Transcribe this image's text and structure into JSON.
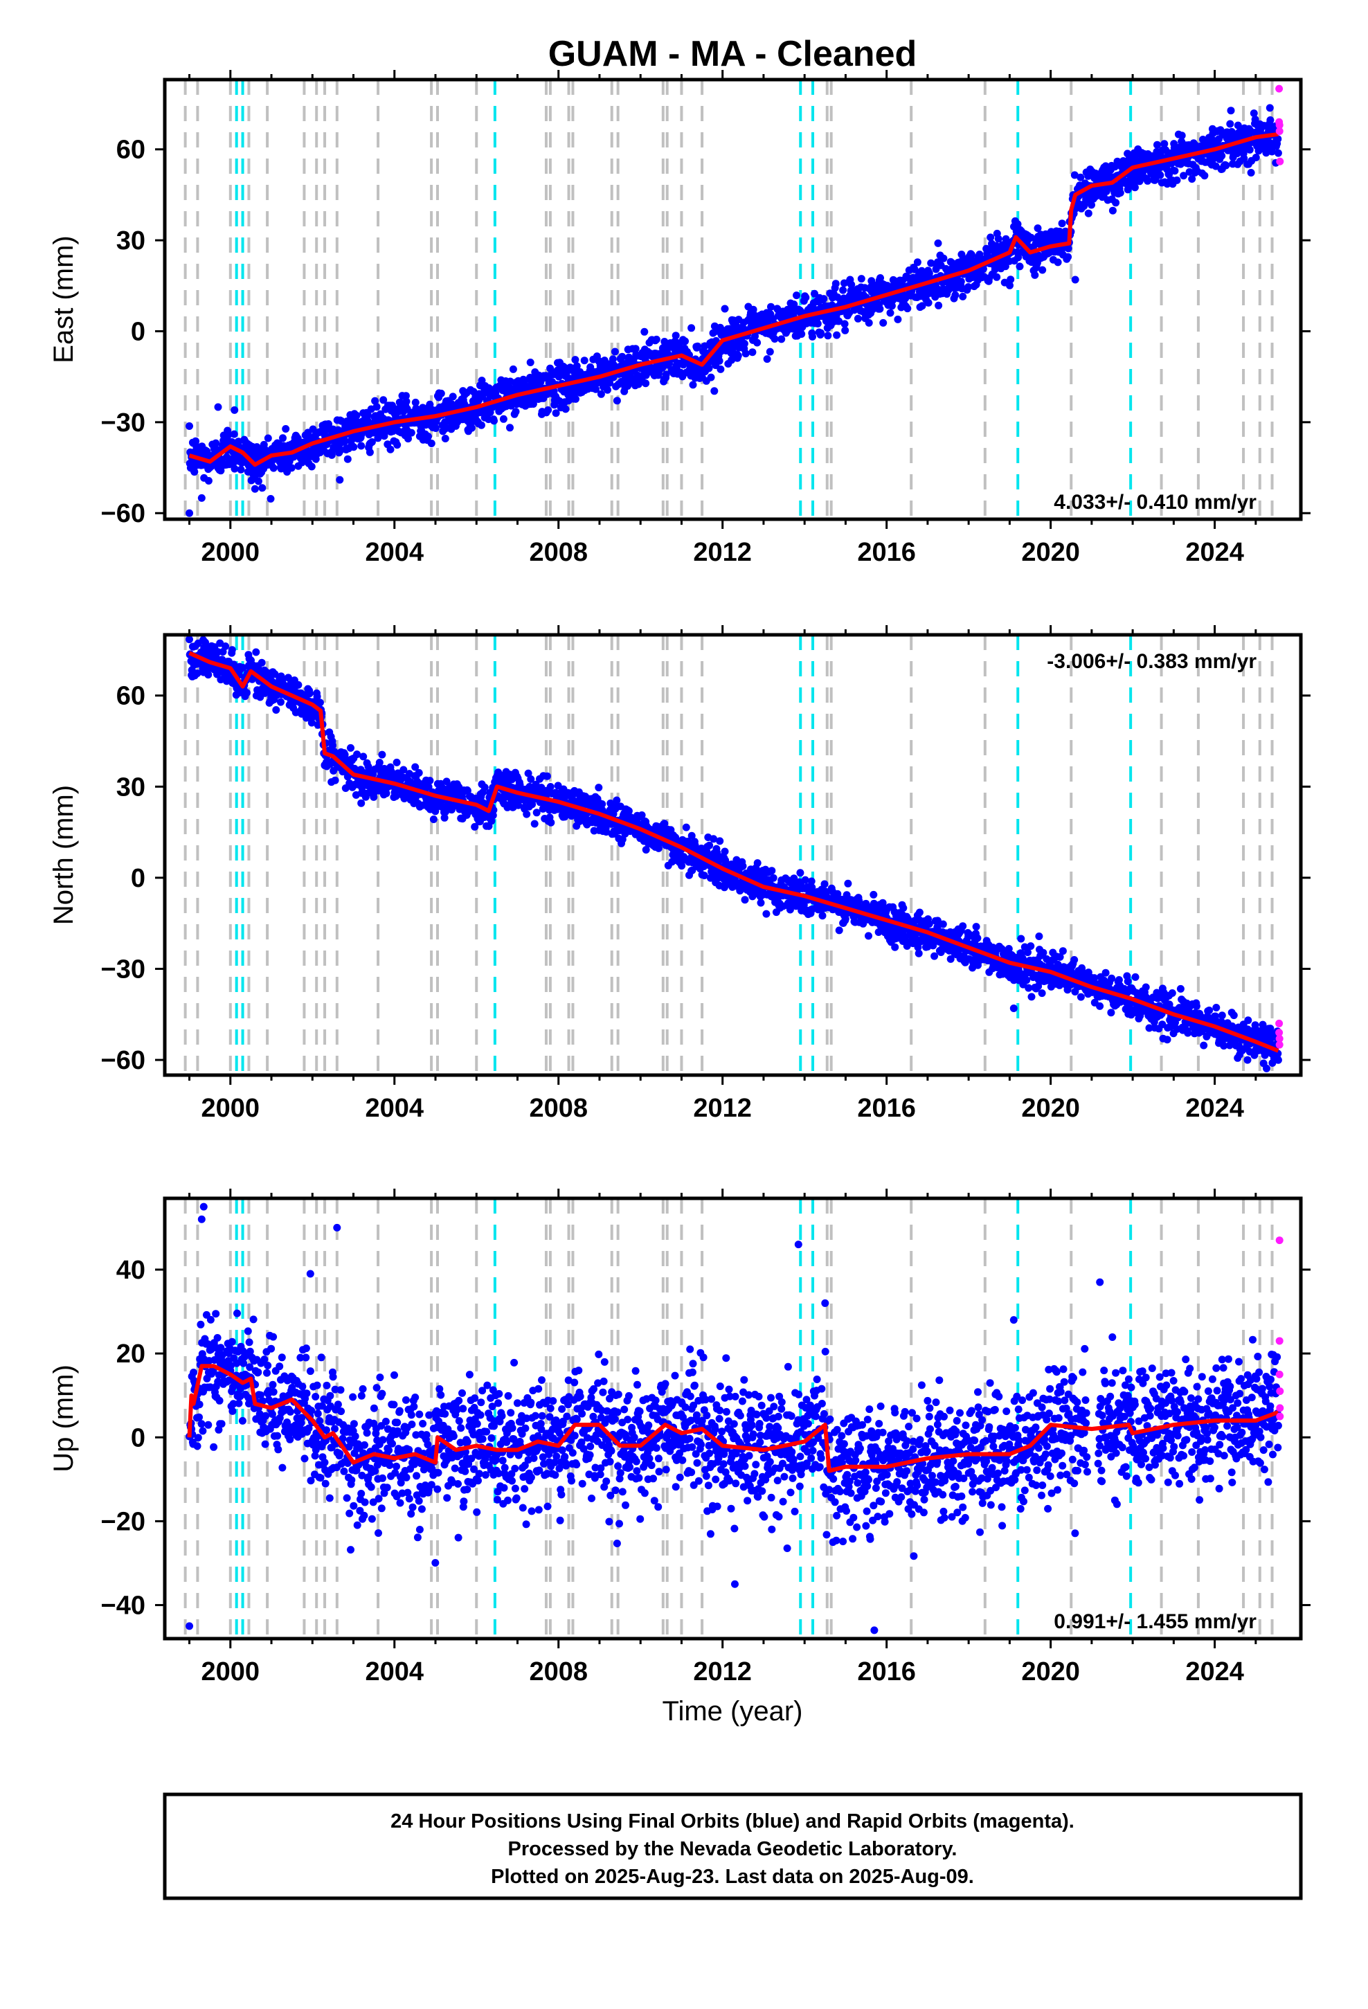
{
  "title": "GUAM  - MA - Cleaned",
  "xlabel": "Time (year)",
  "caption": {
    "line1": "24 Hour Positions Using Final Orbits (blue) and Rapid Orbits (magenta).",
    "line2": "Processed by the Nevada Geodetic Laboratory.",
    "line3": "Plotted on 2025-Aug-23. Last data on 2025-Aug-09."
  },
  "colors": {
    "final_orbits": "#0000ff",
    "rapid_orbits": "#ff1aff",
    "model_fit": "#ff0000",
    "event_gray": "#c0c0c0",
    "event_cyan": "#00e5ee"
  },
  "chart_data": [
    {
      "type": "scatter",
      "ylabel": "East (mm)",
      "rate_label": "4.033+/- 0.410 mm/yr",
      "xlim": [
        1998.4,
        2026.1
      ],
      "ylim": [
        -62,
        83
      ],
      "x_ticks": [
        2000,
        2004,
        2008,
        2012,
        2016,
        2020,
        2024
      ],
      "y_ticks": [
        -60,
        -30,
        0,
        30,
        60
      ],
      "grid": false,
      "fit_series": {
        "name": "model",
        "x": [
          1999.0,
          1999.5,
          2000.0,
          2000.3,
          2000.6,
          2001.0,
          2001.5,
          2002.0,
          2003.0,
          2004.0,
          2005.0,
          2006.0,
          2007.0,
          2008.0,
          2009.0,
          2010.0,
          2011.0,
          2011.5,
          2012.0,
          2013.0,
          2014.0,
          2015.0,
          2016.0,
          2017.0,
          2018.0,
          2019.0,
          2019.15,
          2019.5,
          2020.0,
          2020.45,
          2020.5,
          2020.6,
          2021.0,
          2021.5,
          2022.0,
          2023.0,
          2024.0,
          2025.0,
          2025.55
        ],
        "y": [
          -41,
          -43,
          -38,
          -40,
          -44,
          -41,
          -40,
          -37,
          -33,
          -30,
          -28,
          -25,
          -21,
          -18,
          -15,
          -11,
          -8,
          -11,
          -3,
          1,
          5,
          8,
          12,
          16,
          20,
          26,
          31,
          26,
          28,
          29,
          40,
          45,
          48,
          49,
          54,
          57,
          60,
          64,
          65
        ]
      },
      "rapid_points": {
        "x": [
          2025.57,
          2025.57,
          2025.58,
          2025.58,
          2025.59
        ],
        "y": [
          80,
          69,
          68,
          66,
          56
        ]
      },
      "scatter_spread_mm": 3.5,
      "outliers": {
        "x": [
          1999.0,
          1999.3,
          1999.7,
          2000.1,
          2000.6,
          2020.6
        ],
        "y": [
          -60,
          -55,
          -25,
          -26,
          -52,
          17
        ]
      },
      "events_gray": [
        1998.9,
        1999.2,
        2000.0,
        2000.45,
        2000.9,
        2001.8,
        2002.1,
        2002.3,
        2002.6,
        2003.6,
        2004.9,
        2005.05,
        2006.0,
        2007.7,
        2007.8,
        2008.25,
        2008.35,
        2009.3,
        2009.45,
        2010.55,
        2010.65,
        2011.0,
        2011.5,
        2014.55,
        2014.65,
        2016.6,
        2018.4,
        2020.5,
        2022.7,
        2023.6,
        2024.7,
        2025.1,
        2025.4
      ],
      "events_cyan": [
        2000.15,
        2000.3,
        2006.45,
        2013.9,
        2014.2,
        2019.2,
        2021.95
      ]
    },
    {
      "type": "scatter",
      "ylabel": "North (mm)",
      "rate_label": "-3.006+/- 0.383 mm/yr",
      "xlim": [
        1998.4,
        2026.1
      ],
      "ylim": [
        -65,
        80
      ],
      "x_ticks": [
        2000,
        2004,
        2008,
        2012,
        2016,
        2020,
        2024
      ],
      "y_ticks": [
        -60,
        -30,
        0,
        30,
        60
      ],
      "grid": false,
      "fit_series": {
        "name": "model",
        "x": [
          1999.0,
          1999.5,
          2000.0,
          2000.3,
          2000.5,
          2001.0,
          2001.5,
          2002.0,
          2002.2,
          2002.3,
          2002.5,
          2003.0,
          2004.0,
          2005.0,
          2006.0,
          2006.3,
          2006.5,
          2007.0,
          2008.0,
          2009.0,
          2010.0,
          2011.0,
          2012.0,
          2013.0,
          2014.0,
          2015.0,
          2016.0,
          2017.0,
          2018.0,
          2019.0,
          2020.0,
          2021.0,
          2022.0,
          2023.0,
          2024.0,
          2025.0,
          2025.55
        ],
        "y": [
          74,
          71,
          69,
          63,
          68,
          63,
          60,
          57,
          55,
          41,
          40,
          34,
          31,
          27,
          24,
          22,
          30,
          28,
          25,
          21,
          16,
          10,
          3,
          -3,
          -6,
          -10,
          -14,
          -18,
          -23,
          -28,
          -31,
          -36,
          -40,
          -45,
          -49,
          -54,
          -57
        ]
      },
      "rapid_points": {
        "x": [
          2025.57,
          2025.57,
          2025.58,
          2025.58
        ],
        "y": [
          -48,
          -51,
          -53,
          -55
        ]
      },
      "scatter_spread_mm": 3.0,
      "outliers": {
        "x": [
          2002.3,
          2006.3,
          2011.5,
          2019.1,
          2024.8
        ],
        "y": [
          37,
          17,
          1,
          -43,
          -60
        ]
      },
      "events_gray": [
        1998.9,
        1999.2,
        2000.0,
        2000.45,
        2000.9,
        2001.8,
        2002.1,
        2002.3,
        2002.6,
        2003.6,
        2004.9,
        2005.05,
        2006.0,
        2007.7,
        2007.8,
        2008.25,
        2008.35,
        2009.3,
        2009.45,
        2010.55,
        2010.65,
        2011.0,
        2011.5,
        2014.55,
        2014.65,
        2016.6,
        2018.4,
        2020.5,
        2022.7,
        2023.6,
        2024.7,
        2025.1,
        2025.4
      ],
      "events_cyan": [
        2000.15,
        2000.3,
        2006.45,
        2013.9,
        2014.2,
        2019.2,
        2021.95
      ]
    },
    {
      "type": "scatter",
      "ylabel": "Up (mm)",
      "rate_label": "0.991+/- 1.455 mm/yr",
      "xlim": [
        1998.4,
        2026.1
      ],
      "ylim": [
        -48,
        57
      ],
      "x_ticks": [
        2000,
        2004,
        2008,
        2012,
        2016,
        2020,
        2024
      ],
      "y_ticks": [
        -40,
        -20,
        0,
        20,
        40
      ],
      "grid": false,
      "fit_series": {
        "name": "model",
        "x": [
          1999.0,
          1999.05,
          1999.1,
          1999.3,
          1999.6,
          2000.0,
          2000.3,
          2000.5,
          2000.6,
          2001.0,
          2001.5,
          2002.0,
          2002.3,
          2002.5,
          2003.0,
          2003.5,
          2004.0,
          2004.5,
          2005.0,
          2005.05,
          2005.5,
          2006.0,
          2006.5,
          2007.0,
          2007.5,
          2008.0,
          2008.4,
          2009.0,
          2009.5,
          2010.0,
          2010.6,
          2011.0,
          2011.5,
          2012.0,
          2013.0,
          2014.0,
          2014.5,
          2014.6,
          2015.0,
          2016.0,
          2017.0,
          2018.0,
          2019.0,
          2019.5,
          2020.0,
          2021.0,
          2021.9,
          2022.0,
          2023.0,
          2024.0,
          2025.0,
          2025.55
        ],
        "y": [
          0,
          10,
          8,
          17,
          17,
          15,
          13,
          14,
          8,
          7,
          9,
          4,
          0,
          1,
          -6,
          -4,
          -5,
          -4,
          -6,
          0,
          -3,
          -2,
          -3,
          -3,
          -1,
          -2,
          3,
          3,
          -2,
          -2,
          3,
          1,
          2,
          -2,
          -3,
          -1,
          3,
          -8,
          -7,
          -7,
          -5,
          -4,
          -4,
          -2,
          3,
          2,
          3,
          1,
          3,
          4,
          4,
          6
        ]
      },
      "rapid_points": {
        "x": [
          2025.58,
          2025.58,
          2025.58,
          2025.59,
          2025.59,
          2025.59
        ],
        "y": [
          47,
          23,
          15,
          11,
          7,
          5
        ]
      },
      "scatter_spread_mm": 7.0,
      "outliers": {
        "x": [
          1999.0,
          1999.3,
          1999.35,
          2002.6,
          2001.95,
          2013.85,
          2015.7,
          2014.5,
          2012.3,
          2021.2,
          2019.1
        ],
        "y": [
          -45,
          52,
          55,
          50,
          39,
          46,
          -46,
          32,
          -35,
          37,
          28
        ]
      },
      "events_gray": [
        1998.9,
        1999.2,
        2000.0,
        2000.45,
        2000.9,
        2001.8,
        2002.1,
        2002.3,
        2002.6,
        2003.6,
        2004.9,
        2005.05,
        2006.0,
        2007.7,
        2007.8,
        2008.25,
        2008.35,
        2009.3,
        2009.45,
        2010.55,
        2010.65,
        2011.0,
        2011.5,
        2014.55,
        2014.65,
        2016.6,
        2018.4,
        2020.5,
        2022.7,
        2023.6,
        2024.7,
        2025.1,
        2025.4
      ],
      "events_cyan": [
        2000.15,
        2000.3,
        2006.45,
        2013.9,
        2014.2,
        2019.2,
        2021.95
      ]
    }
  ]
}
